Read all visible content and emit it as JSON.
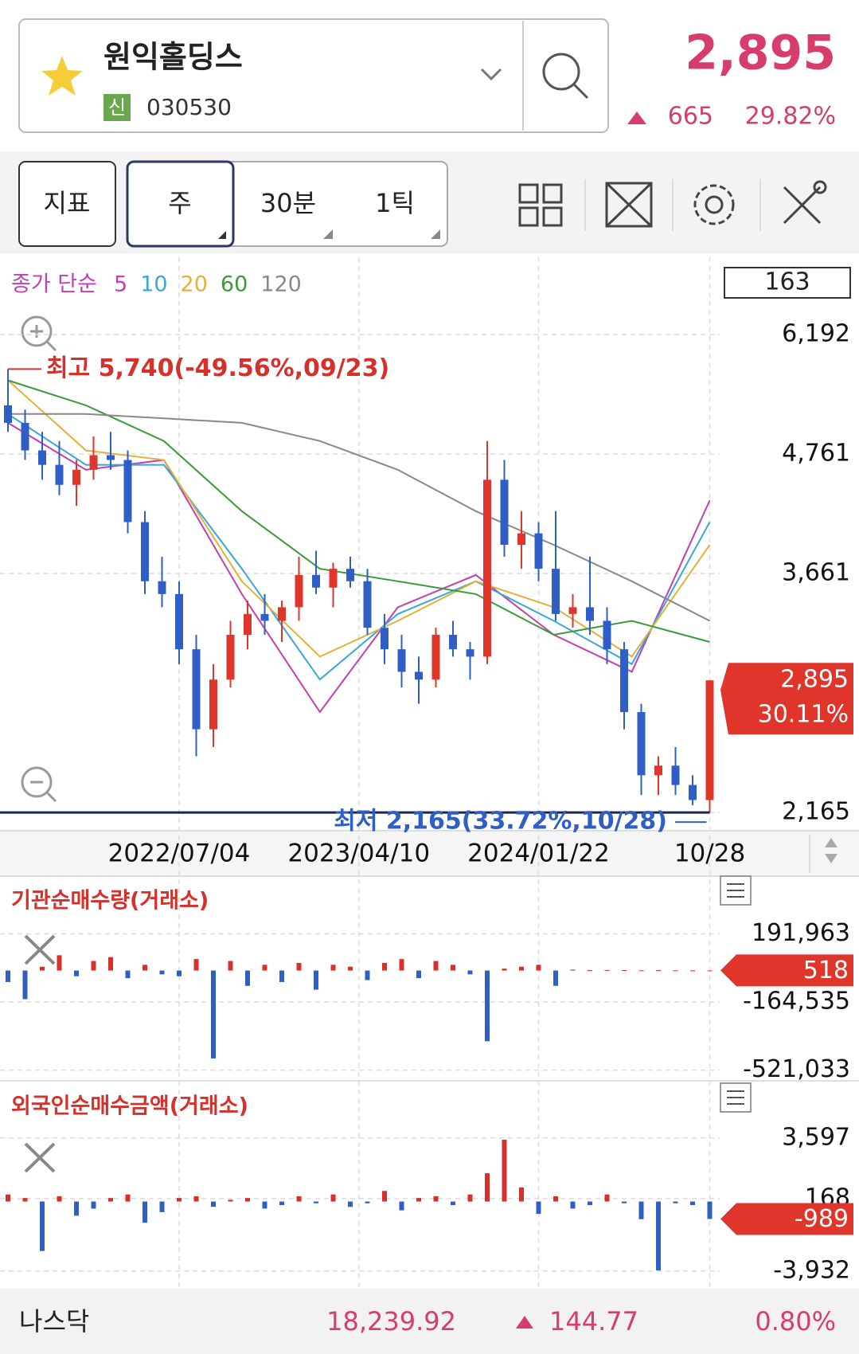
{
  "header": {
    "name": "원익홀딩스",
    "badge": "신",
    "code": "030530",
    "price": "2,895",
    "change": "665",
    "change_pct": "29.82%"
  },
  "toolbar": {
    "buttons": [
      "지표",
      "주",
      "30분",
      "1틱"
    ]
  },
  "chart_data": [
    {
      "type": "candlestick",
      "legend_prefix": "종가 단순",
      "visible_count": 163,
      "log_scale": true,
      "grid": true,
      "up_color": "#e0352b",
      "down_color": "#2f5fc4",
      "ohlc": [
        [
          5300,
          5740,
          5000,
          5100
        ],
        [
          5100,
          5250,
          4700,
          4800
        ],
        [
          4800,
          5000,
          4500,
          4650
        ],
        [
          4650,
          4900,
          4350,
          4450
        ],
        [
          4450,
          4700,
          4250,
          4600
        ],
        [
          4600,
          4950,
          4500,
          4750
        ],
        [
          4750,
          5000,
          4600,
          4700
        ],
        [
          4700,
          4800,
          4000,
          4100
        ],
        [
          4100,
          4200,
          3500,
          3600
        ],
        [
          3600,
          3800,
          3400,
          3500
        ],
        [
          3500,
          3600,
          3000,
          3100
        ],
        [
          3100,
          3200,
          2450,
          2600
        ],
        [
          2600,
          3000,
          2500,
          2900
        ],
        [
          2900,
          3300,
          2850,
          3200
        ],
        [
          3200,
          3450,
          3100,
          3350
        ],
        [
          3350,
          3500,
          3200,
          3300
        ],
        [
          3300,
          3450,
          3150,
          3400
        ],
        [
          3400,
          3800,
          3300,
          3650
        ],
        [
          3650,
          3850,
          3500,
          3550
        ],
        [
          3550,
          3750,
          3400,
          3700
        ],
        [
          3700,
          3800,
          3550,
          3600
        ],
        [
          3600,
          3700,
          3200,
          3250
        ],
        [
          3250,
          3350,
          3000,
          3100
        ],
        [
          3100,
          3200,
          2850,
          2950
        ],
        [
          2950,
          3050,
          2750,
          2900
        ],
        [
          2900,
          3250,
          2850,
          3200
        ],
        [
          3200,
          3300,
          3050,
          3100
        ],
        [
          3100,
          3150,
          2900,
          3050
        ],
        [
          3050,
          4900,
          3000,
          4500
        ],
        [
          4500,
          4700,
          3800,
          3900
        ],
        [
          3900,
          4200,
          3700,
          4000
        ],
        [
          4000,
          4100,
          3600,
          3700
        ],
        [
          3700,
          4200,
          3300,
          3350
        ],
        [
          3350,
          3500,
          3250,
          3400
        ],
        [
          3400,
          3800,
          3200,
          3300
        ],
        [
          3300,
          3400,
          3000,
          3100
        ],
        [
          3100,
          3150,
          2600,
          2700
        ],
        [
          2700,
          2750,
          2250,
          2350
        ],
        [
          2350,
          2450,
          2250,
          2400
        ],
        [
          2400,
          2500,
          2250,
          2300
        ],
        [
          2300,
          2350,
          2200,
          2225
        ],
        [
          2225,
          2895,
          2165,
          2895
        ]
      ],
      "series": [
        {
          "name": "5",
          "color": "#c23fb0",
          "values": [
            5100,
            4600,
            4700,
            3500,
            2700,
            3400,
            3650,
            3200,
            2950,
            4300
          ]
        },
        {
          "name": "10",
          "color": "#3aa6d8",
          "values": [
            5200,
            4650,
            4650,
            3700,
            2900,
            3350,
            3600,
            3300,
            3000,
            4100
          ]
        },
        {
          "name": "20",
          "color": "#e3b13a",
          "values": [
            5600,
            4800,
            4700,
            3600,
            3050,
            3300,
            3600,
            3400,
            3050,
            3900
          ]
        },
        {
          "name": "60",
          "color": "#3a9a3a",
          "values": [
            5600,
            5300,
            4900,
            4200,
            3700,
            3600,
            3500,
            3200,
            3300,
            3150
          ]
        },
        {
          "name": "120",
          "color": "#888888",
          "values": [
            5200,
            5200,
            5150,
            5100,
            4900,
            4600,
            4200,
            3900,
            3600,
            3300
          ]
        }
      ],
      "xticks": [
        {
          "value": 10,
          "label": "2022/07/04"
        },
        {
          "value": 20.5,
          "label": "2023/04/10"
        },
        {
          "value": 31,
          "label": "2024/01/22"
        },
        {
          "value": 41,
          "label": "10/28"
        }
      ],
      "ylim": [
        2080,
        7340
      ],
      "yticks": [
        {
          "value": 6192,
          "label": "6,192"
        },
        {
          "value": 4761,
          "label": "4,761"
        },
        {
          "value": 3661,
          "label": "3,661"
        },
        {
          "value": 2165,
          "label": "2,165"
        }
      ],
      "high_annotation": "최고 5,740(-49.56%,09/23)",
      "low_annotation": "최저 2,165(33.72%,10/28)",
      "last_price": {
        "value": 2895,
        "label": "2,895"
      },
      "last_pct": "30.11%"
    },
    {
      "type": "bar",
      "title": "기관순매수량(거래소)",
      "up_color": "#d6302a",
      "down_color": "#2f5fc4",
      "values": [
        -60000,
        -150000,
        20000,
        80000,
        -30000,
        50000,
        70000,
        -40000,
        30000,
        -20000,
        -30000,
        60000,
        -460000,
        50000,
        -80000,
        30000,
        -60000,
        40000,
        -100000,
        30000,
        20000,
        -50000,
        40000,
        60000,
        -40000,
        50000,
        30000,
        -20000,
        -370000,
        10000,
        20000,
        30000,
        -80000,
        5000,
        2000,
        3000,
        2000,
        1000,
        2000,
        1000,
        1000,
        518
      ],
      "ylim": [
        -577000,
        494000
      ],
      "yticks": [
        {
          "value": 191963,
          "label": "191,963"
        },
        {
          "value": -164535,
          "label": "-164,535"
        },
        {
          "value": -521033,
          "label": "-521,033"
        }
      ]
    },
    {
      "type": "bar",
      "title": "외국인순매수금액(거래소)",
      "up_color": "#d6302a",
      "down_color": "#2f5fc4",
      "values": [
        400,
        200,
        -2800,
        300,
        -800,
        -400,
        200,
        400,
        -1200,
        -600,
        200,
        300,
        -300,
        100,
        200,
        -400,
        -200,
        300,
        -100,
        400,
        -300,
        -100,
        600,
        -500,
        200,
        300,
        -200,
        400,
        1600,
        3500,
        800,
        -700,
        300,
        -400,
        -200,
        400,
        -100,
        -1000,
        -3900,
        -100,
        -200,
        -989
      ],
      "ylim": [
        -4890,
        6835
      ],
      "yticks": [
        {
          "value": 3597,
          "label": "3,597"
        },
        {
          "value": 168,
          "label": "168"
        },
        {
          "value": -3932,
          "label": "-3,932"
        }
      ]
    }
  ],
  "footer": {
    "index": "나스닥",
    "value": "18,239.92",
    "change": "144.77",
    "change_pct": "0.80%"
  }
}
